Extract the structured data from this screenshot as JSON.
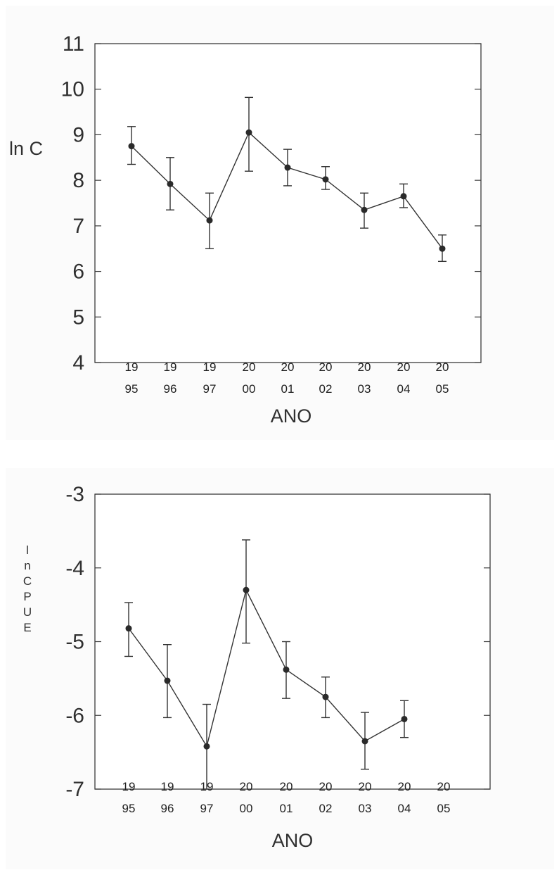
{
  "chart_data": [
    {
      "type": "line",
      "title": "",
      "xlabel": "ANO",
      "ylabel": "ln C",
      "ylim": [
        4,
        11
      ],
      "yticks": [
        "4",
        "5",
        "6",
        "7",
        "8",
        "9",
        "10",
        "11"
      ],
      "categories": [
        {
          "top": "19",
          "bottom": "95"
        },
        {
          "top": "19",
          "bottom": "96"
        },
        {
          "top": "19",
          "bottom": "97"
        },
        {
          "top": "20",
          "bottom": "00"
        },
        {
          "top": "20",
          "bottom": "01"
        },
        {
          "top": "20",
          "bottom": "02"
        },
        {
          "top": "20",
          "bottom": "03"
        },
        {
          "top": "20",
          "bottom": "04"
        },
        {
          "top": "20",
          "bottom": "05"
        }
      ],
      "series": [
        {
          "values": [
            8.75,
            7.92,
            7.12,
            9.05,
            8.28,
            8.02,
            7.35,
            7.65,
            6.5
          ],
          "lower": [
            8.35,
            7.35,
            6.5,
            8.2,
            7.88,
            7.8,
            6.95,
            7.4,
            6.22
          ],
          "upper": [
            9.18,
            8.5,
            7.72,
            9.82,
            8.68,
            8.3,
            7.72,
            7.92,
            6.8
          ]
        }
      ],
      "grid": false,
      "legend": "none"
    },
    {
      "type": "line",
      "title": "",
      "xlabel": "ANO",
      "ylabel": "lnCPUE",
      "ylim": [
        -7,
        -3
      ],
      "yticks": [
        "-7",
        "-6",
        "-5",
        "-4",
        "-3"
      ],
      "categories": [
        {
          "top": "19",
          "bottom": "95"
        },
        {
          "top": "19",
          "bottom": "96"
        },
        {
          "top": "19",
          "bottom": "97"
        },
        {
          "top": "20",
          "bottom": "00"
        },
        {
          "top": "20",
          "bottom": "01"
        },
        {
          "top": "20",
          "bottom": "02"
        },
        {
          "top": "20",
          "bottom": "03"
        },
        {
          "top": "20",
          "bottom": "04"
        },
        {
          "top": "20",
          "bottom": "05"
        }
      ],
      "series": [
        {
          "values": [
            -4.82,
            -5.53,
            -6.42,
            -4.3,
            -5.38,
            -5.75,
            -6.35,
            -6.05,
            null
          ],
          "lower": [
            -5.2,
            -6.03,
            -7.0,
            -5.02,
            -5.77,
            -6.03,
            -6.73,
            -6.3,
            null
          ],
          "upper": [
            -4.47,
            -5.04,
            -5.85,
            -3.62,
            -5.0,
            -5.48,
            -5.96,
            -5.8,
            null
          ]
        }
      ],
      "grid": false,
      "legend": "none"
    }
  ]
}
